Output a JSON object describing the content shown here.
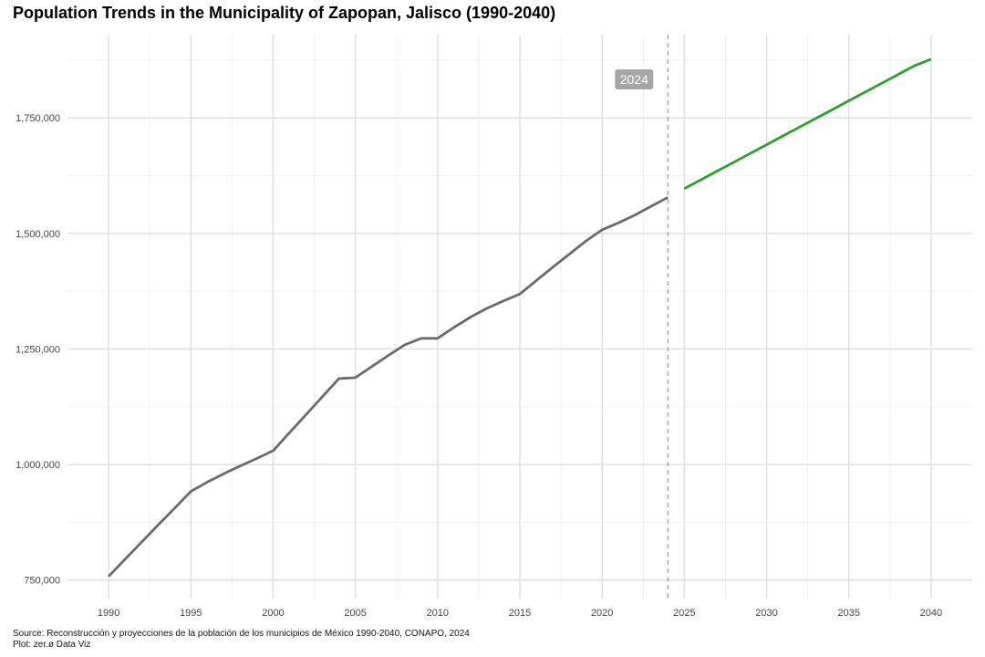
{
  "chart_data": {
    "type": "line",
    "title": "Population Trends in the Municipality of Zapopan, Jalisco (1990-2040)",
    "xlabel": "",
    "ylabel": "",
    "xlim": [
      1987.5,
      2042.5
    ],
    "ylim": [
      710000,
      1930000
    ],
    "x_ticks": [
      1990,
      1995,
      2000,
      2005,
      2010,
      2015,
      2020,
      2025,
      2030,
      2035,
      2040
    ],
    "y_ticks": [
      750000,
      1000000,
      1250000,
      1500000,
      1750000
    ],
    "y_tick_labels": [
      "750,000",
      "1,000,000",
      "1,250,000",
      "1,500,000",
      "1,750,000"
    ],
    "grid": true,
    "series": [
      {
        "color": "#6b6b6b",
        "x": [
          1990,
          1991,
          1992,
          1993,
          1994,
          1995,
          1996,
          1997,
          1998,
          1999,
          2000,
          2001,
          2002,
          2003,
          2004,
          2005,
          2006,
          2007,
          2008,
          2009,
          2010,
          2011,
          2012,
          2013,
          2014,
          2015,
          2016,
          2017,
          2018,
          2019,
          2020,
          2021,
          2022,
          2023,
          2024
        ],
        "y": [
          758000,
          795000,
          832000,
          869000,
          905000,
          942000,
          962000,
          980000,
          997000,
          1013000,
          1030000,
          1069000,
          1108000,
          1147000,
          1186000,
          1188000,
          1212000,
          1236000,
          1259000,
          1273000,
          1273000,
          1297000,
          1319000,
          1338000,
          1354000,
          1369000,
          1398000,
          1427000,
          1455000,
          1483000,
          1508000,
          1523000,
          1540000,
          1559000,
          1578000
        ]
      },
      {
        "color": "#2ca02c",
        "x": [
          2025,
          2026,
          2027,
          2028,
          2029,
          2030,
          2031,
          2032,
          2033,
          2034,
          2035,
          2036,
          2037,
          2038,
          2039,
          2040
        ],
        "y": [
          1597000,
          1616000,
          1635000,
          1654000,
          1673000,
          1692000,
          1711000,
          1730000,
          1749000,
          1768000,
          1787000,
          1806000,
          1825000,
          1844000,
          1863000,
          1877000
        ]
      }
    ],
    "annotations": [
      {
        "x": 2024,
        "label": "2024",
        "line_style": "dashed",
        "line_color": "#999999",
        "box_color": "#a6a6a6"
      }
    ],
    "caption": {
      "source": "Source: Reconstrucción y proyecciones de la población de los municipios de México 1990-2040, CONAPO, 2024",
      "plot": "Plot: zer.ø Data Viz"
    }
  }
}
